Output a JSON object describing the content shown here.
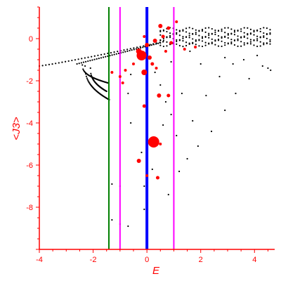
{
  "chart_data": {
    "type": "scatter",
    "title": "",
    "xlabel": "E",
    "ylabel": "<J3>",
    "xlim": [
      -4,
      4.75
    ],
    "ylim": [
      -10,
      1.5
    ],
    "xticks": [
      -4,
      -2,
      0,
      2,
      4
    ],
    "yticks": [
      0,
      -2,
      -4,
      -6,
      -8
    ],
    "tick_labels_x": [
      "-4",
      "-2",
      "0",
      "2",
      "4"
    ],
    "tick_labels_y": [
      "0",
      "-2",
      "-4",
      "-6",
      "-8"
    ],
    "grid": false,
    "legend": "none",
    "colors": {
      "axes": "#ff0000",
      "black_points": "#000000",
      "red_points": "#ff0000",
      "vline_blue": "#0000ff",
      "vline_magenta": "#ff00ff",
      "vline_green": "#008000"
    },
    "vertical_lines": [
      {
        "x": -1.414,
        "color": "#008000"
      },
      {
        "x": -1.0,
        "color": "#ff00ff"
      },
      {
        "x": 0.0,
        "color": "#0000ff"
      },
      {
        "x": 1.0,
        "color": "#ff00ff"
      }
    ],
    "black_curves": [
      {
        "x_start": -4.0,
        "x_end": 0.6,
        "y_start": -1.3,
        "y_end": -0.15,
        "curvature": 1.1
      },
      {
        "x_start": -2.6,
        "x_end": 0.5,
        "y_start": -1.2,
        "y_end": -0.2,
        "curvature": 1.0
      },
      {
        "x_start": -2.3,
        "x_end": -1.4,
        "y_start": -1.3,
        "y_end": -2.9,
        "curvature": 0.4
      },
      {
        "x_start": -2.1,
        "x_end": -1.5,
        "y_start": -1.4,
        "y_end": -2.5,
        "curvature": 0.4
      },
      {
        "x_start": -2.4,
        "x_end": -1.45,
        "y_start": -1.25,
        "y_end": -2.1,
        "curvature": 0.4
      }
    ],
    "black_band": {
      "x_start": 0.5,
      "x_end": 4.7,
      "rows": [
        0.45,
        0.3,
        0.15,
        0.0,
        -0.15,
        -0.3
      ]
    },
    "black_scatter": [
      [
        -1.3,
        -6.9
      ],
      [
        -1.0,
        -7.0
      ],
      [
        -0.1,
        -7.0
      ],
      [
        0.8,
        -7.4
      ],
      [
        -1.3,
        -8.6
      ],
      [
        -1.0,
        -8.8
      ],
      [
        -0.7,
        -8.9
      ],
      [
        -0.1,
        -8.1
      ],
      [
        1.2,
        -6.3
      ],
      [
        1.5,
        -5.7
      ],
      [
        1.9,
        -5.1
      ],
      [
        2.4,
        -4.4
      ],
      [
        2.9,
        -3.4
      ],
      [
        3.3,
        -2.6
      ],
      [
        3.8,
        -1.9
      ],
      [
        4.3,
        -1.3
      ],
      [
        1.7,
        -3.9
      ],
      [
        2.2,
        -2.7
      ],
      [
        2.7,
        -1.8
      ],
      [
        3.2,
        -1.2
      ],
      [
        0.5,
        -2.2
      ],
      [
        0.7,
        -3.0
      ],
      [
        -0.7,
        -2.6
      ],
      [
        -0.6,
        -4.0
      ],
      [
        -0.2,
        -5.4
      ],
      [
        0.6,
        -4.1
      ],
      [
        1.1,
        -4.6
      ],
      [
        0.9,
        -3.6
      ],
      [
        0.3,
        -1.6
      ],
      [
        -0.6,
        -1.7
      ],
      [
        3.6,
        -1.0
      ],
      [
        4.1,
        -0.8
      ],
      [
        2.9,
        -0.9
      ],
      [
        1.6,
        -0.6
      ],
      [
        2.0,
        -1.2
      ],
      [
        4.5,
        -1.4
      ],
      [
        4.6,
        -1.5
      ],
      [
        1.3,
        -2.6
      ],
      [
        0.2,
        -6.2
      ],
      [
        0.9,
        -1.1
      ]
    ],
    "red_points": [
      {
        "x": 0.25,
        "y": -4.9,
        "r": 8
      },
      {
        "x": -0.2,
        "y": -0.8,
        "r": 7
      },
      {
        "x": -0.1,
        "y": -1.6,
        "r": 4
      },
      {
        "x": -0.1,
        "y": -3.2,
        "r": 2.5
      },
      {
        "x": 0.45,
        "y": -2.7,
        "r": 3
      },
      {
        "x": 0.8,
        "y": -2.7,
        "r": 2.5
      },
      {
        "x": -0.3,
        "y": -5.8,
        "r": 3
      },
      {
        "x": 0.4,
        "y": -6.6,
        "r": 2.5
      },
      {
        "x": 0.0,
        "y": -6.5,
        "r": 2
      },
      {
        "x": 0.5,
        "y": 0.6,
        "r": 3
      },
      {
        "x": 0.6,
        "y": 0.1,
        "r": 2.5
      },
      {
        "x": 0.8,
        "y": 0.5,
        "r": 2.5
      },
      {
        "x": 0.3,
        "y": -0.1,
        "r": 3
      },
      {
        "x": 0.0,
        "y": -0.3,
        "r": 3
      },
      {
        "x": 0.2,
        "y": -1.2,
        "r": 2.5
      },
      {
        "x": -0.5,
        "y": -1.2,
        "r": 2
      },
      {
        "x": -0.8,
        "y": -1.5,
        "r": 2
      },
      {
        "x": -1.0,
        "y": -1.8,
        "r": 2
      },
      {
        "x": 1.4,
        "y": -0.5,
        "r": 2
      },
      {
        "x": 1.8,
        "y": -0.4,
        "r": 2
      },
      {
        "x": 0.9,
        "y": -0.2,
        "r": 2.5
      },
      {
        "x": -0.3,
        "y": -0.6,
        "r": 4
      },
      {
        "x": 0.1,
        "y": -0.9,
        "r": 3
      },
      {
        "x": -0.1,
        "y": 0.1,
        "r": 2
      },
      {
        "x": 0.7,
        "y": -0.6,
        "r": 2
      },
      {
        "x": -1.3,
        "y": -1.6,
        "r": 2
      },
      {
        "x": -0.9,
        "y": -2.1,
        "r": 2
      },
      {
        "x": 0.5,
        "y": -5.0,
        "r": 2
      },
      {
        "x": 0.35,
        "y": -1.4,
        "r": 2
      },
      {
        "x": 1.1,
        "y": 0.8,
        "r": 2
      }
    ]
  }
}
